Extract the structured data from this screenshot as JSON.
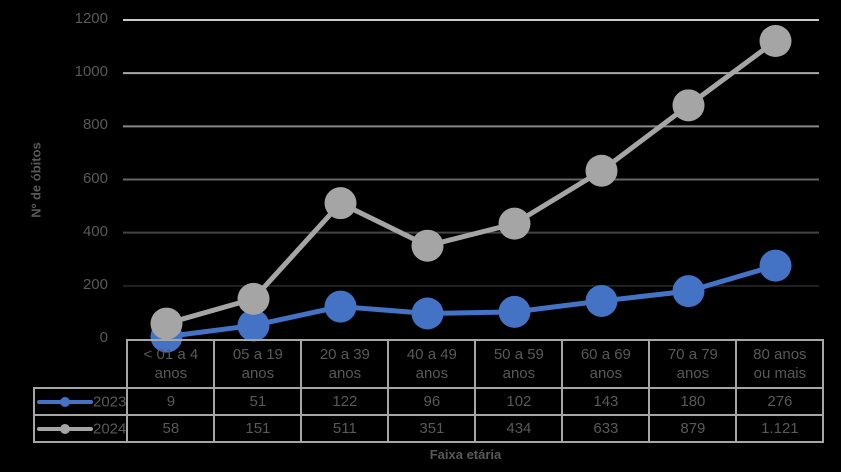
{
  "chart_data": {
    "type": "line",
    "title": "",
    "xlabel": "Faixa etária",
    "ylabel": "Nº de óbitos",
    "ylim": [
      0,
      1200
    ],
    "yticks": [
      0,
      200,
      400,
      600,
      800,
      1000,
      1200
    ],
    "grid": true,
    "legend_position": "data-table",
    "categories": [
      "< 01 a 4 anos",
      "05 a 19 anos",
      "20 a 39 anos",
      "40 a 49 anos",
      "50 a 59 anos",
      "60 a 69 anos",
      "70 a 79 anos",
      "80 anos ou mais"
    ],
    "categories_lines": [
      [
        "< 01 a 4",
        "anos"
      ],
      [
        "05 a 19",
        "anos"
      ],
      [
        "20 a 39",
        "anos"
      ],
      [
        "40 a 49",
        "anos"
      ],
      [
        "50 a 59",
        "anos"
      ],
      [
        "60 a 69",
        "anos"
      ],
      [
        "70 a 79",
        "anos"
      ],
      [
        "80 anos",
        "ou mais"
      ]
    ],
    "series": [
      {
        "name": "2023",
        "color": "#4472c4",
        "values": [
          9,
          51,
          122,
          96,
          102,
          143,
          180,
          276
        ],
        "labels": [
          "9",
          "51",
          "122",
          "96",
          "102",
          "143",
          "180",
          "276"
        ]
      },
      {
        "name": "2024",
        "color": "#a5a5a5",
        "values": [
          58,
          151,
          511,
          351,
          434,
          633,
          879,
          1121
        ],
        "labels": [
          "58",
          "151",
          "511",
          "351",
          "434",
          "633",
          "879",
          "1.121"
        ]
      }
    ]
  },
  "axis": {
    "ylabel": "Nº de óbitos",
    "xlabel": "Faixa etária"
  }
}
